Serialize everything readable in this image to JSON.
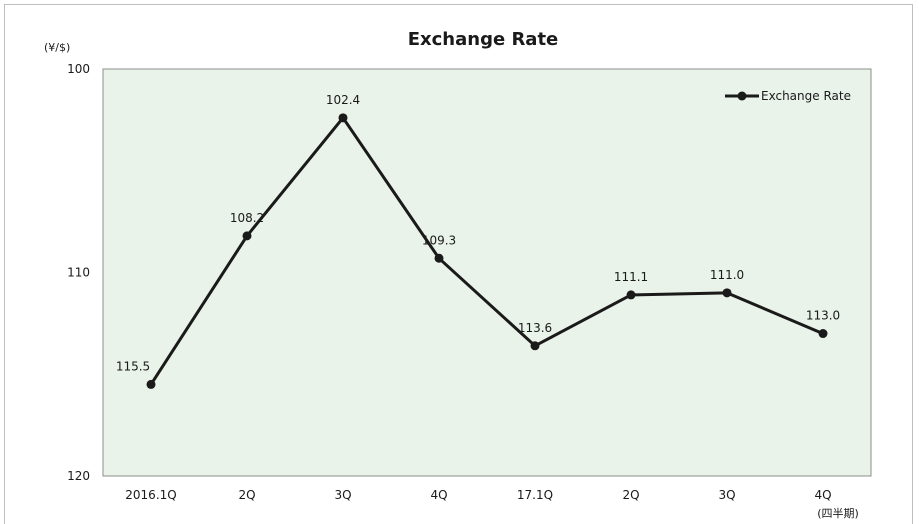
{
  "chart_data": {
    "type": "line",
    "title": "Exchange Rate",
    "y_unit": "(¥/$)",
    "x_unit": "(四半期)",
    "categories": [
      "2016.1Q",
      "2Q",
      "3Q",
      "4Q",
      "17.1Q",
      "2Q",
      "3Q",
      "4Q"
    ],
    "series": [
      {
        "name": "Exchange Rate",
        "values": [
          115.5,
          108.2,
          102.4,
          109.3,
          113.6,
          111.1,
          111.0,
          113.0
        ],
        "labels": [
          "115.5",
          "108.2",
          "102.4",
          "109.3",
          "113.6",
          "111.1",
          "111.0",
          "113.0"
        ],
        "color": "#1a1a1a"
      }
    ],
    "ylim": [
      100,
      120
    ],
    "y_inverted": true,
    "yticks": [
      "100",
      "110",
      "120"
    ],
    "grid": false,
    "legend_position": "top-right",
    "plot_background": "#e9f3e9"
  }
}
